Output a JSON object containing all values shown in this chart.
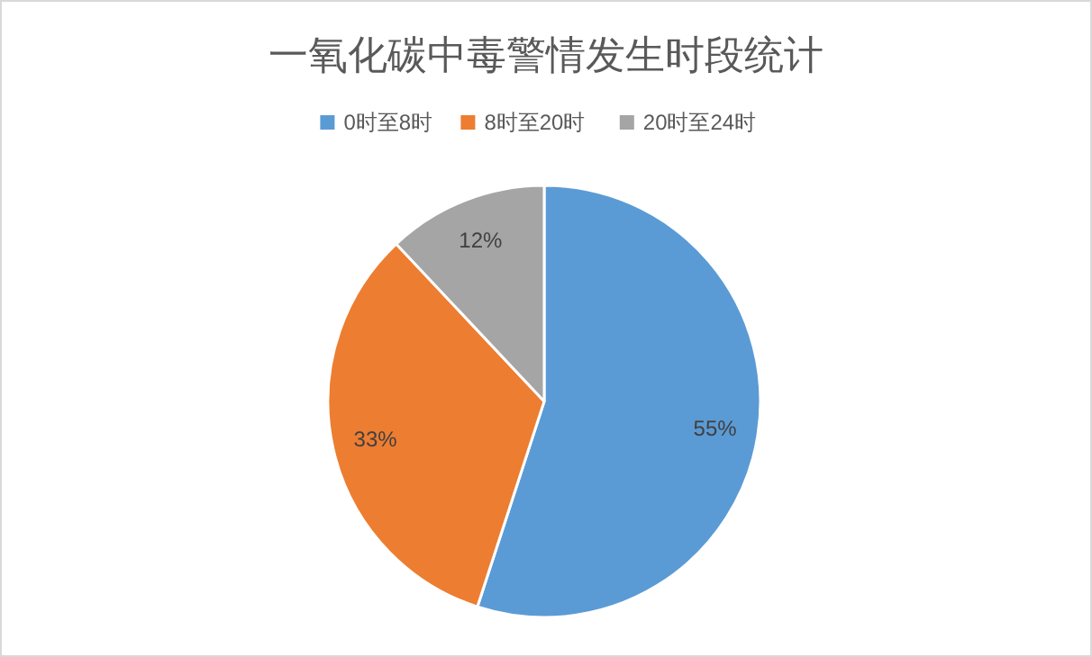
{
  "chart_data": {
    "type": "pie",
    "title": "一氧化碳中毒警情发生时段统计",
    "categories": [
      "0时至8时",
      "8时至20时",
      "20时至24时"
    ],
    "values": [
      55,
      33,
      12
    ],
    "colors": [
      "#5b9bd5",
      "#ed7d31",
      "#a5a5a5"
    ],
    "value_labels": [
      "55%",
      "33%",
      "12%"
    ],
    "legend": "top"
  }
}
